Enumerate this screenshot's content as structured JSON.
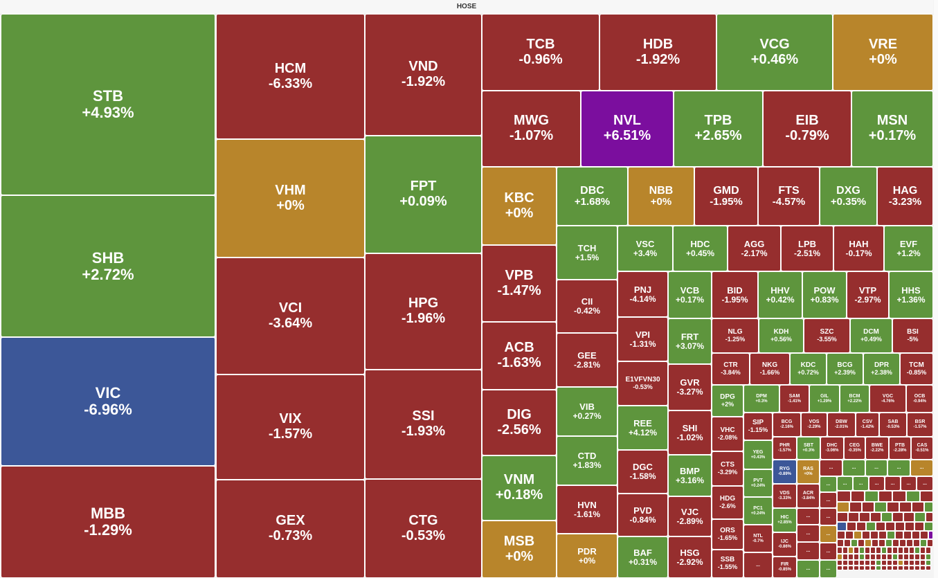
{
  "title": "HOSE",
  "colors": {
    "green": "#5e953d",
    "red": "#962e2e",
    "yellow": "#b8852b",
    "blue": "#3c5798",
    "purple": "#7b0e9e"
  },
  "tiles": [
    {
      "s": "STB",
      "p": "+4.93%",
      "c": "green"
    },
    {
      "s": "SHB",
      "p": "+2.72%",
      "c": "green"
    },
    {
      "s": "VIC",
      "p": "-6.96%",
      "c": "blue"
    },
    {
      "s": "MBB",
      "p": "-1.29%",
      "c": "red"
    },
    {
      "s": "HCM",
      "p": "-6.33%",
      "c": "red"
    },
    {
      "s": "VHM",
      "p": "+0%",
      "c": "yellow"
    },
    {
      "s": "VCI",
      "p": "-3.64%",
      "c": "red"
    },
    {
      "s": "VIX",
      "p": "-1.57%",
      "c": "red"
    },
    {
      "s": "GEX",
      "p": "-0.73%",
      "c": "red"
    },
    {
      "s": "VND",
      "p": "-1.92%",
      "c": "red"
    },
    {
      "s": "FPT",
      "p": "+0.09%",
      "c": "green"
    },
    {
      "s": "HPG",
      "p": "-1.96%",
      "c": "red"
    },
    {
      "s": "SSI",
      "p": "-1.93%",
      "c": "red"
    },
    {
      "s": "CTG",
      "p": "-0.53%",
      "c": "red"
    },
    {
      "s": "TCB",
      "p": "-0.96%",
      "c": "red"
    },
    {
      "s": "HDB",
      "p": "-1.92%",
      "c": "red"
    },
    {
      "s": "VCG",
      "p": "+0.46%",
      "c": "green"
    },
    {
      "s": "VRE",
      "p": "+0%",
      "c": "yellow"
    },
    {
      "s": "MWG",
      "p": "-1.07%",
      "c": "red"
    },
    {
      "s": "NVL",
      "p": "+6.51%",
      "c": "purple"
    },
    {
      "s": "TPB",
      "p": "+2.65%",
      "c": "green"
    },
    {
      "s": "EIB",
      "p": "-0.79%",
      "c": "red"
    },
    {
      "s": "MSN",
      "p": "+0.17%",
      "c": "green"
    },
    {
      "s": "KBC",
      "p": "+0%",
      "c": "yellow"
    },
    {
      "s": "VPB",
      "p": "-1.47%",
      "c": "red"
    },
    {
      "s": "ACB",
      "p": "-1.63%",
      "c": "red"
    },
    {
      "s": "DIG",
      "p": "-2.56%",
      "c": "red"
    },
    {
      "s": "VNM",
      "p": "+0.18%",
      "c": "green"
    },
    {
      "s": "MSB",
      "p": "+0%",
      "c": "yellow"
    },
    {
      "s": "DBC",
      "p": "+1.68%",
      "c": "green"
    },
    {
      "s": "NBB",
      "p": "+0%",
      "c": "yellow"
    },
    {
      "s": "GMD",
      "p": "-1.95%",
      "c": "red"
    },
    {
      "s": "FTS",
      "p": "-4.57%",
      "c": "red"
    },
    {
      "s": "DXG",
      "p": "+0.35%",
      "c": "green"
    },
    {
      "s": "HAG",
      "p": "-3.23%",
      "c": "red"
    },
    {
      "s": "TCH",
      "p": "+1.5%",
      "c": "green"
    },
    {
      "s": "CII",
      "p": "-0.42%",
      "c": "red"
    },
    {
      "s": "GEE",
      "p": "-2.81%",
      "c": "red"
    },
    {
      "s": "VIB",
      "p": "+0.27%",
      "c": "green"
    },
    {
      "s": "CTD",
      "p": "+1.83%",
      "c": "green"
    },
    {
      "s": "HVN",
      "p": "-1.61%",
      "c": "red"
    },
    {
      "s": "PDR",
      "p": "+0%",
      "c": "yellow"
    },
    {
      "s": "VSC",
      "p": "+3.4%",
      "c": "green"
    },
    {
      "s": "HDC",
      "p": "+0.45%",
      "c": "green"
    },
    {
      "s": "AGG",
      "p": "-2.17%",
      "c": "red"
    },
    {
      "s": "LPB",
      "p": "-2.51%",
      "c": "red"
    },
    {
      "s": "HAH",
      "p": "-0.17%",
      "c": "red"
    },
    {
      "s": "EVF",
      "p": "+1.2%",
      "c": "green"
    },
    {
      "s": "PNJ",
      "p": "-4.14%",
      "c": "red"
    },
    {
      "s": "VPI",
      "p": "-1.31%",
      "c": "red"
    },
    {
      "s": "E1VFVN30",
      "p": "-0.53%",
      "c": "red"
    },
    {
      "s": "REE",
      "p": "+4.12%",
      "c": "green"
    },
    {
      "s": "DGC",
      "p": "-1.58%",
      "c": "red"
    },
    {
      "s": "PVD",
      "p": "-0.84%",
      "c": "red"
    },
    {
      "s": "BAF",
      "p": "+0.31%",
      "c": "green"
    },
    {
      "s": "VCB",
      "p": "+0.17%",
      "c": "green"
    },
    {
      "s": "FRT",
      "p": "+3.07%",
      "c": "green"
    },
    {
      "s": "GVR",
      "p": "-3.27%",
      "c": "red"
    },
    {
      "s": "SHI",
      "p": "-1.02%",
      "c": "red"
    },
    {
      "s": "BMP",
      "p": "+3.16%",
      "c": "green"
    },
    {
      "s": "VJC",
      "p": "-2.89%",
      "c": "red"
    },
    {
      "s": "HSG",
      "p": "-2.92%",
      "c": "red"
    },
    {
      "s": "BID",
      "p": "-1.95%",
      "c": "red"
    },
    {
      "s": "HHV",
      "p": "+0.42%",
      "c": "green"
    },
    {
      "s": "POW",
      "p": "+0.83%",
      "c": "green"
    },
    {
      "s": "VTP",
      "p": "-2.97%",
      "c": "red"
    },
    {
      "s": "HHS",
      "p": "+1.36%",
      "c": "green"
    },
    {
      "s": "NLG",
      "p": "-1.25%",
      "c": "red"
    },
    {
      "s": "KDH",
      "p": "+0.56%",
      "c": "green"
    },
    {
      "s": "SZC",
      "p": "-3.55%",
      "c": "red"
    },
    {
      "s": "DCM",
      "p": "+0.49%",
      "c": "green"
    },
    {
      "s": "BSI",
      "p": "-5%",
      "c": "red"
    },
    {
      "s": "CTR",
      "p": "-3.84%",
      "c": "red"
    },
    {
      "s": "NKG",
      "p": "-1.66%",
      "c": "red"
    },
    {
      "s": "KDC",
      "p": "+0.72%",
      "c": "green"
    },
    {
      "s": "BCG",
      "p": "+2.39%",
      "c": "green"
    },
    {
      "s": "DPR",
      "p": "+2.38%",
      "c": "green"
    },
    {
      "s": "TCM",
      "p": "-0.85%",
      "c": "red"
    },
    {
      "s": "DPG",
      "p": "+2%",
      "c": "green"
    },
    {
      "s": "VHC",
      "p": "-2.08%",
      "c": "red"
    },
    {
      "s": "CTS",
      "p": "-3.29%",
      "c": "red"
    },
    {
      "s": "HDG",
      "p": "-2.6%",
      "c": "red"
    },
    {
      "s": "ORS",
      "p": "-1.65%",
      "c": "red"
    },
    {
      "s": "SSB",
      "p": "-1.55%",
      "c": "red"
    },
    {
      "s": "DPM",
      "p": "+0.3%",
      "c": "green"
    },
    {
      "s": "SAM",
      "p": "-1.41%",
      "c": "red"
    },
    {
      "s": "GIL",
      "p": "+1.29%",
      "c": "green"
    },
    {
      "s": "BCM",
      "p": "+2.22%",
      "c": "green"
    },
    {
      "s": "VGC",
      "p": "-4.76%",
      "c": "red"
    },
    {
      "s": "OCB",
      "p": "-0.94%",
      "c": "red"
    },
    {
      "s": "SIP",
      "p": "-1.15%",
      "c": "red"
    },
    {
      "s": "YEG",
      "p": "+0.43%",
      "c": "green"
    },
    {
      "s": "PVT",
      "p": "+0.24%",
      "c": "green"
    },
    {
      "s": "PC1",
      "p": "+0.24%",
      "c": "green"
    },
    {
      "s": "NTL",
      "p": "-0.7%",
      "c": "red"
    },
    {
      "s": "...",
      "p": "",
      "c": "red"
    },
    {
      "s": "BCG",
      "p": "-2.16%",
      "c": "red"
    },
    {
      "s": "VOS",
      "p": "-2.29%",
      "c": "red"
    },
    {
      "s": "DBW",
      "p": "-2.01%",
      "c": "red"
    },
    {
      "s": "CSV",
      "p": "-1.42%",
      "c": "red"
    },
    {
      "s": "SAB",
      "p": "-0.53%",
      "c": "red"
    },
    {
      "s": "BSR",
      "p": "-1.57%",
      "c": "red"
    },
    {
      "s": "PHR",
      "p": "-1.57%",
      "c": "red"
    },
    {
      "s": "SBT",
      "p": "+0.3%",
      "c": "green"
    },
    {
      "s": "DHC",
      "p": "-3.06%",
      "c": "red"
    },
    {
      "s": "CEG",
      "p": "-0.35%",
      "c": "red"
    },
    {
      "s": "BWE",
      "p": "-2.22%",
      "c": "red"
    },
    {
      "s": "PTB",
      "p": "-2.28%",
      "c": "red"
    },
    {
      "s": "CAS",
      "p": "-0.51%",
      "c": "red"
    },
    {
      "s": "RYG",
      "p": "-0.89%",
      "c": "blue"
    },
    {
      "s": "RAS",
      "p": "+0%",
      "c": "yellow"
    },
    {
      "s": "VDS",
      "p": "-3.33%",
      "c": "red"
    },
    {
      "s": "ACR",
      "p": "-3.84%",
      "c": "red"
    },
    {
      "s": "HIC",
      "p": "+2.85%",
      "c": "green"
    },
    {
      "s": "IJC",
      "p": "-0.86%",
      "c": "red"
    },
    {
      "s": "FIR",
      "p": "-0.85%",
      "c": "red"
    },
    {
      "s": "...",
      "p": "",
      "c": "red"
    },
    {
      "s": "...",
      "p": "",
      "c": "green"
    },
    {
      "s": "...",
      "p": "",
      "c": "green"
    },
    {
      "s": "...",
      "p": "",
      "c": "green"
    },
    {
      "s": "...",
      "p": "",
      "c": "yellow"
    },
    {
      "s": "...",
      "p": "",
      "c": "red"
    },
    {
      "s": "...",
      "p": "",
      "c": "red"
    },
    {
      "s": "...",
      "p": "",
      "c": "red"
    },
    {
      "s": "...",
      "p": "",
      "c": "green"
    },
    {
      "s": "...",
      "p": "",
      "c": "green"
    },
    {
      "s": "...",
      "p": "",
      "c": "red"
    },
    {
      "s": "...",
      "p": "",
      "c": "red"
    },
    {
      "s": "...",
      "p": "",
      "c": "yellow"
    },
    {
      "s": "...",
      "p": "",
      "c": "red"
    },
    {
      "s": "...",
      "p": "",
      "c": "green"
    },
    {
      "s": "...",
      "p": "",
      "c": "green"
    },
    {
      "s": "...",
      "p": "",
      "c": "green"
    },
    {
      "s": "...",
      "p": "",
      "c": "red"
    },
    {
      "s": "...",
      "p": "",
      "c": "red"
    },
    {
      "s": "...",
      "p": "",
      "c": "red"
    },
    {
      "s": "...",
      "p": "",
      "c": "red"
    },
    {
      "s": "...",
      "p": "",
      "c": "green"
    },
    {
      "s": "...",
      "p": "",
      "c": "red"
    },
    {
      "s": "...",
      "p": "",
      "c": "green"
    },
    {
      "s": "...",
      "p": "",
      "c": "red"
    },
    {
      "s": "...",
      "p": "",
      "c": "red"
    }
  ],
  "mosaic_colors": [
    "red",
    "red",
    "green",
    "red",
    "red",
    "green",
    "red",
    "yellow",
    "red",
    "red",
    "green",
    "red",
    "red",
    "red",
    "green",
    "red",
    "red",
    "red",
    "red",
    "green",
    "red",
    "red",
    "green",
    "red",
    "blue",
    "red",
    "red",
    "green",
    "red",
    "red",
    "red",
    "red",
    "red",
    "green",
    "red",
    "red",
    "yellow",
    "red",
    "red",
    "red",
    "green",
    "red",
    "red",
    "red",
    "red",
    "purple",
    "red",
    "red",
    "green",
    "red",
    "yellow",
    "red",
    "red",
    "green",
    "red",
    "red",
    "red",
    "red",
    "green",
    "red",
    "red",
    "red",
    "yellow",
    "red",
    "green",
    "red",
    "red",
    "red",
    "green",
    "red",
    "red",
    "red",
    "red",
    "red",
    "green",
    "red",
    "red",
    "yellow",
    "red",
    "red",
    "red",
    "green",
    "red",
    "red",
    "red",
    "red",
    "red",
    "green",
    "red",
    "red",
    "red",
    "red",
    "red",
    "green",
    "red",
    "red",
    "red",
    "red",
    "red",
    "red",
    "red",
    "green",
    "red",
    "red",
    "red",
    "yellow",
    "red",
    "red",
    "red",
    "red",
    "green",
    "red",
    "red",
    "red",
    "red",
    "red",
    "red",
    "red",
    "green",
    "red",
    "red",
    "red",
    "red",
    "red",
    "red",
    "red",
    "red",
    "red"
  ]
}
